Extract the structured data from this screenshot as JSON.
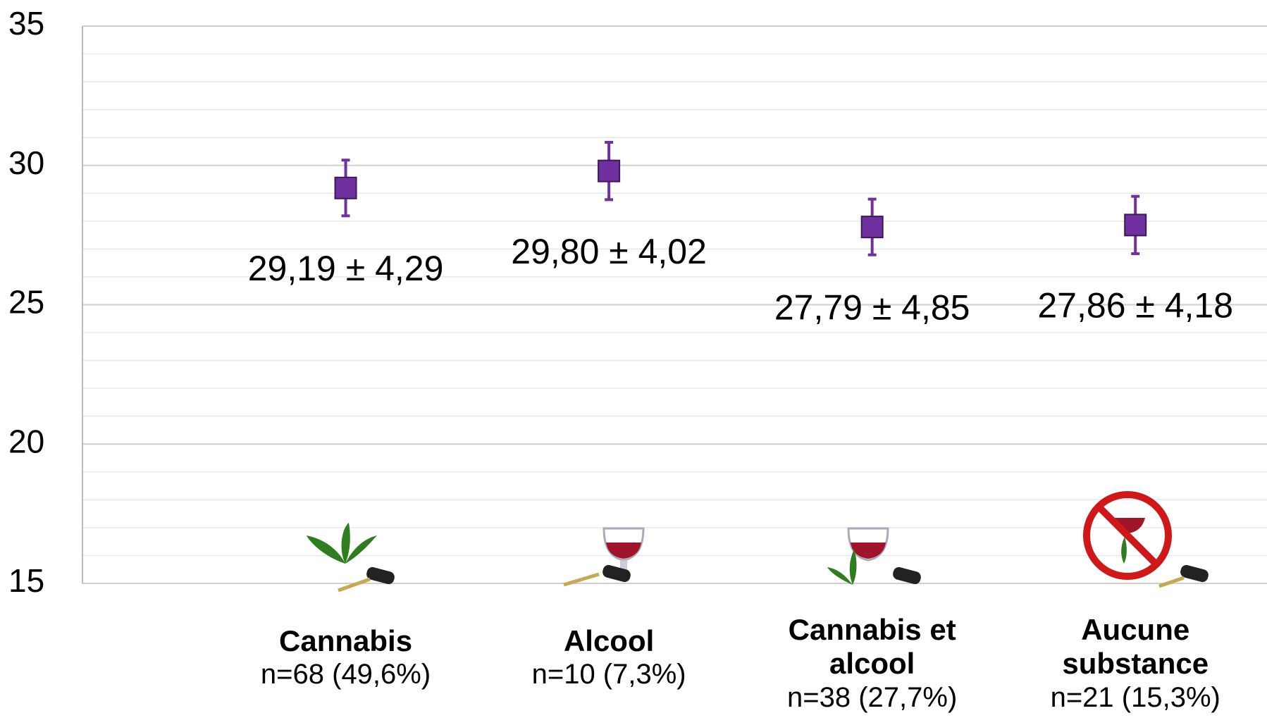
{
  "chart_data": {
    "type": "errorpoint",
    "categories": [
      "Cannabis",
      "Alcool",
      "Cannabis et alcool",
      "Aucune substance"
    ],
    "sample_sizes": [
      "n=68 (49,6%)",
      "n=10 (7,3%)",
      "n=38 (27,7%)",
      "n=21 (15,3%)"
    ],
    "values": [
      29.19,
      29.8,
      27.79,
      27.86
    ],
    "value_labels": [
      "29,19 ± 4,29",
      "29,80 ± 4,02",
      "27,79 ± 4,85",
      "27,86 ± 4,18"
    ],
    "errors": [
      1.0,
      1.03,
      1.0,
      1.03
    ],
    "color": "#7030a0",
    "ylim": [
      15,
      35
    ],
    "yticks": [
      15,
      20,
      25,
      30,
      35
    ],
    "grid": true,
    "minor_grid_step": 1
  }
}
